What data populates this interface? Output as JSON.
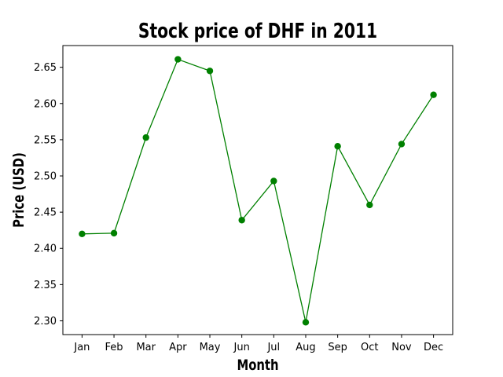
{
  "chart_data": {
    "type": "line",
    "title": "Stock price of DHF in 2011",
    "xlabel": "Month",
    "ylabel": "Price (USD)",
    "categories": [
      "Jan",
      "Feb",
      "Mar",
      "Apr",
      "May",
      "Jun",
      "Jul",
      "Aug",
      "Sep",
      "Oct",
      "Nov",
      "Dec"
    ],
    "series": [
      {
        "values": [
          2.42,
          2.421,
          2.553,
          2.661,
          2.645,
          2.439,
          2.493,
          2.298,
          2.541,
          2.46,
          2.544,
          2.612
        ],
        "color": "#008000"
      }
    ],
    "ylim": [
      2.281,
      2.68
    ],
    "yticks": [
      "2.30",
      "2.35",
      "2.40",
      "2.45",
      "2.50",
      "2.55",
      "2.60",
      "2.65"
    ],
    "grid": false,
    "marker": "circle"
  }
}
